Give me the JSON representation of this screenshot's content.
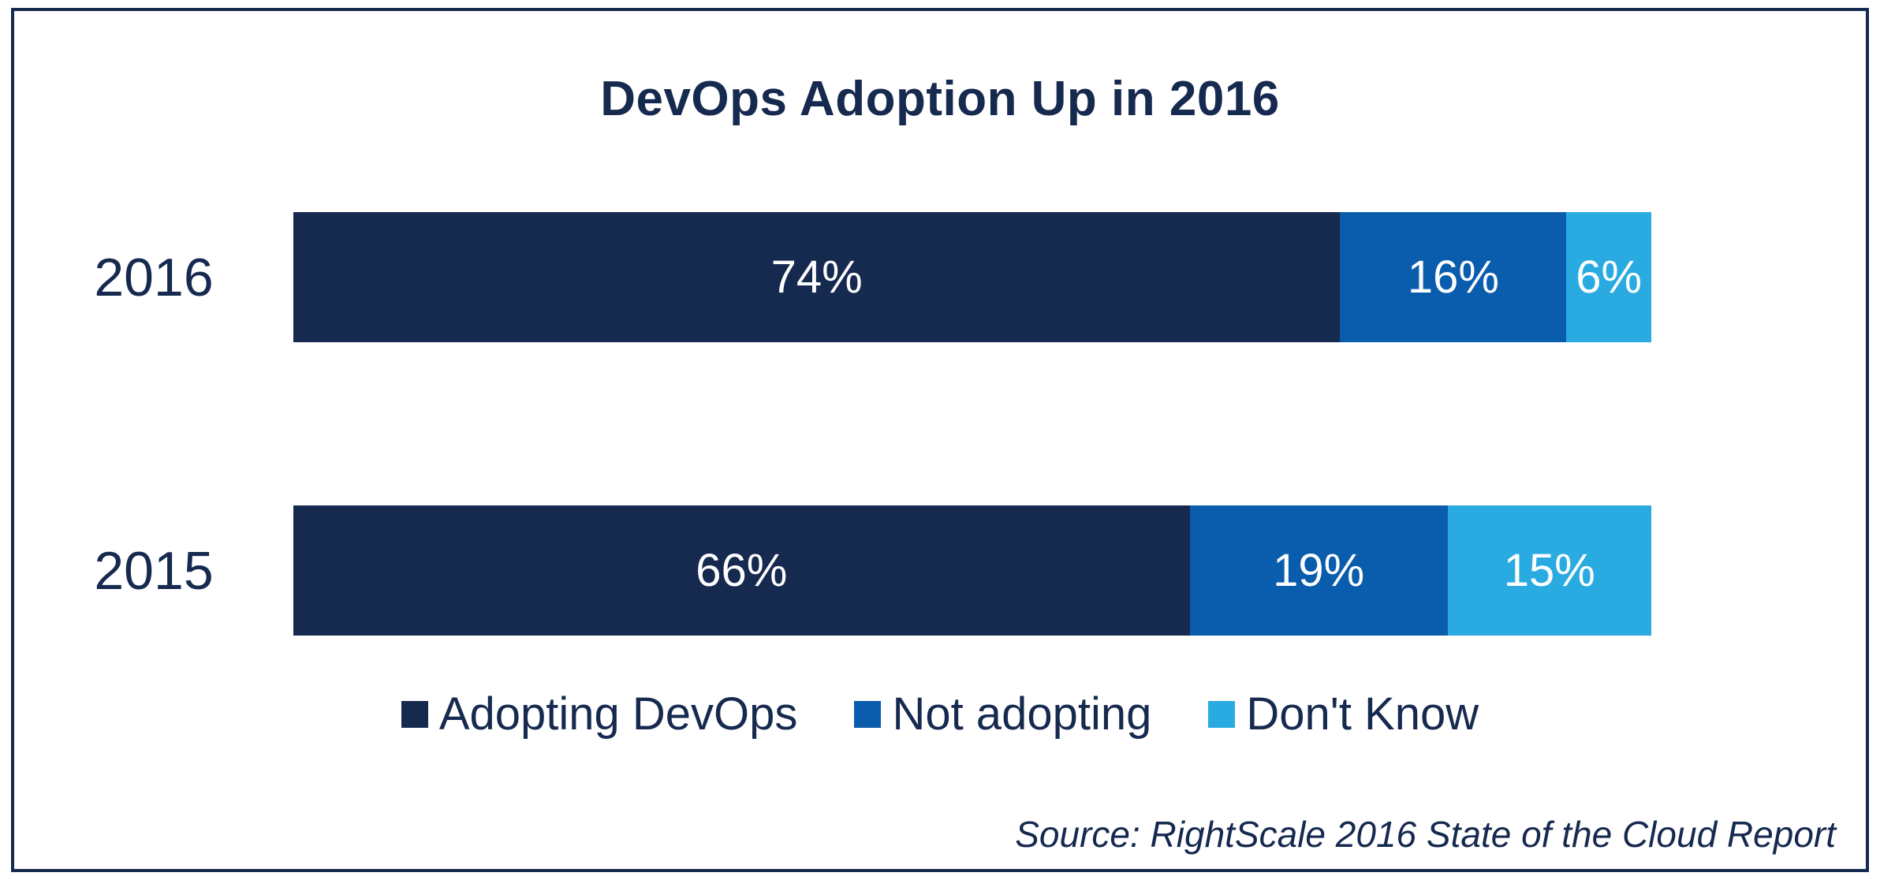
{
  "title": "DevOps Adoption Up in 2016",
  "source": "Source: RightScale 2016 State of the Cloud Report",
  "colors": {
    "adopting_devops": "#16294f",
    "not_adopting": "#0a5cad",
    "dont_know": "#29abe2",
    "text": "#16294f",
    "border": "#16294f",
    "background": "#ffffff"
  },
  "chart_data": {
    "type": "bar",
    "orientation": "horizontal",
    "stacked": true,
    "title": "DevOps Adoption Up in 2016",
    "categories": [
      "2016",
      "2015"
    ],
    "series": [
      {
        "name": "Adopting DevOps",
        "color": "#16294f",
        "values": [
          74,
          66
        ]
      },
      {
        "name": "Not adopting",
        "color": "#0a5cad",
        "values": [
          16,
          19
        ]
      },
      {
        "name": "Don't Know",
        "color": "#29abe2",
        "values": [
          6,
          15
        ]
      }
    ],
    "value_labels": [
      [
        "74%",
        "16%",
        "6%"
      ],
      [
        "66%",
        "19%",
        "15%"
      ]
    ],
    "legend_position": "bottom",
    "annotations": [
      "Source: RightScale 2016 State of the Cloud Report"
    ]
  }
}
